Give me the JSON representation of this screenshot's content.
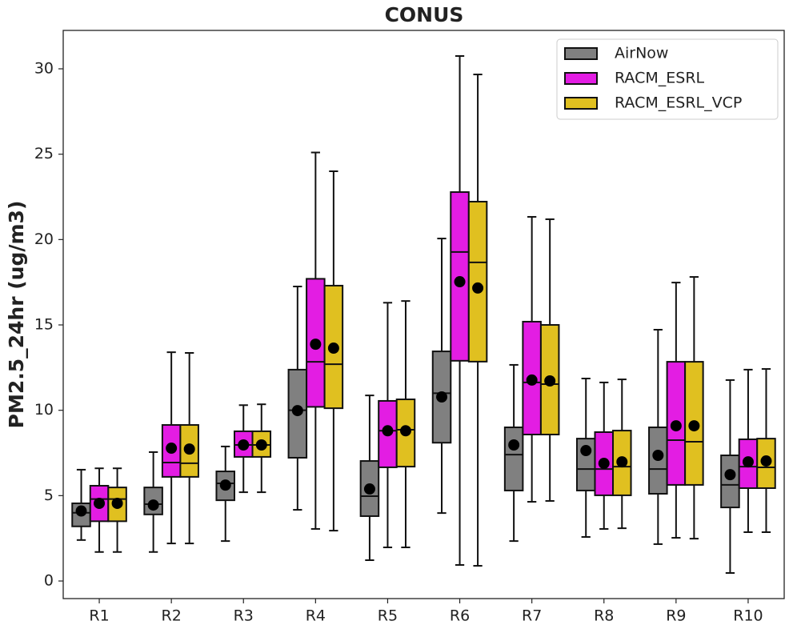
{
  "chart_data": {
    "type": "box",
    "title": "CONUS",
    "y_label": "PM2.5_24hr (ug/m3)",
    "categories": [
      "R1",
      "R2",
      "R3",
      "R4",
      "R5",
      "R6",
      "R7",
      "R8",
      "R9",
      "R10"
    ],
    "ylim": [
      -1.03,
      32.25
    ],
    "yticks": [
      0,
      5,
      10,
      15,
      20,
      25,
      30
    ],
    "legend_position": "upper right",
    "series": [
      {
        "name": "AirNow",
        "color": "#808080",
        "whisker_low": [
          2.4,
          1.7,
          2.34,
          4.17,
          1.22,
          3.98,
          2.34,
          2.58,
          2.16,
          0.47
        ],
        "q1": [
          3.2,
          3.9,
          4.73,
          7.22,
          3.8,
          8.1,
          5.3,
          5.3,
          5.11,
          4.31
        ],
        "median": [
          4.0,
          4.5,
          5.72,
          10.0,
          4.97,
          11.0,
          7.4,
          6.56,
          6.56,
          5.63
        ],
        "q3": [
          4.55,
          5.48,
          6.42,
          12.38,
          7.03,
          13.45,
          9.0,
          8.34,
          9.0,
          7.36
        ],
        "whisker_high": [
          6.52,
          7.55,
          7.88,
          17.25,
          10.87,
          20.06,
          12.66,
          11.86,
          14.72,
          11.77
        ],
        "mean": [
          4.1,
          4.45,
          5.62,
          9.98,
          5.39,
          10.78,
          7.97,
          7.64,
          7.36,
          6.23
        ]
      },
      {
        "name": "RACM_ESRL",
        "color": "#e31de3",
        "whisker_low": [
          1.7,
          2.2,
          5.2,
          3.05,
          1.97,
          0.94,
          4.64,
          3.05,
          2.53,
          2.86
        ],
        "q1": [
          3.5,
          6.1,
          7.27,
          10.2,
          6.66,
          12.9,
          8.58,
          5.02,
          5.63,
          5.44
        ],
        "median": [
          4.8,
          6.94,
          7.97,
          12.84,
          8.8,
          19.27,
          11.63,
          6.56,
          8.25,
          6.7
        ],
        "q3": [
          5.58,
          9.14,
          8.77,
          17.7,
          10.55,
          22.78,
          15.19,
          8.72,
          12.84,
          8.3
        ],
        "whisker_high": [
          6.6,
          13.4,
          10.3,
          25.1,
          16.3,
          30.75,
          21.33,
          11.63,
          17.48,
          12.38
        ],
        "mean": [
          4.55,
          7.78,
          7.97,
          13.87,
          8.8,
          17.53,
          11.77,
          6.89,
          9.09,
          6.98
        ]
      },
      {
        "name": "RACM_ESRL_VCP",
        "color": "#e0c020",
        "whisker_low": [
          1.7,
          2.2,
          5.2,
          2.95,
          1.97,
          0.89,
          4.69,
          3.09,
          2.48,
          2.86
        ],
        "q1": [
          3.5,
          6.1,
          7.27,
          10.12,
          6.7,
          12.85,
          8.58,
          5.02,
          5.63,
          5.44
        ],
        "median": [
          4.8,
          6.9,
          7.97,
          12.7,
          8.86,
          18.66,
          11.53,
          6.7,
          8.16,
          6.66
        ],
        "q3": [
          5.48,
          9.14,
          8.77,
          17.3,
          10.64,
          22.22,
          15.0,
          8.81,
          12.84,
          8.34
        ],
        "whisker_high": [
          6.6,
          13.36,
          10.35,
          24.0,
          16.4,
          29.67,
          21.19,
          11.81,
          17.81,
          12.42
        ],
        "mean": [
          4.55,
          7.73,
          7.97,
          13.64,
          8.8,
          17.16,
          11.72,
          6.98,
          9.09,
          7.03
        ]
      }
    ]
  }
}
